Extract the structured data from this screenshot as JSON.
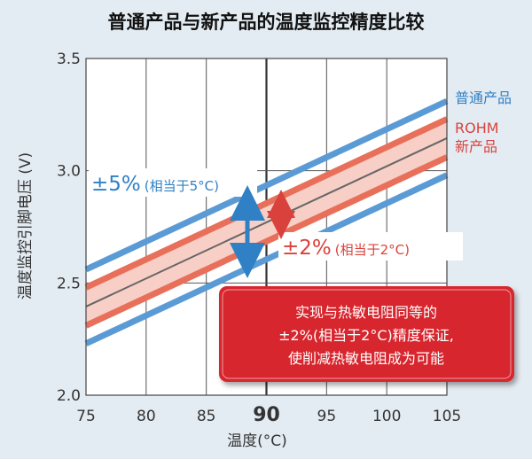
{
  "chart_data": {
    "type": "line",
    "title": "普通产品与新产品的温度监控精度比较",
    "xlabel": "温度(°C)",
    "ylabel": "温度监控引脚电压 (V)",
    "xlim": [
      75,
      105
    ],
    "ylim": [
      2.0,
      3.5
    ],
    "x_ticks": [
      "75",
      "80",
      "85",
      "90",
      "95",
      "100",
      "105"
    ],
    "y_ticks": [
      "2.0",
      "2.5",
      "3.0",
      "3.5"
    ],
    "grid": true,
    "legend_position": "right",
    "series": [
      {
        "name": "普通产品",
        "color": "#5b9bd5",
        "band": "outer",
        "x": [
          75,
          105
        ],
        "upper": [
          2.56,
          3.31
        ],
        "lower": [
          2.23,
          2.98
        ]
      },
      {
        "name": "ROHM 新产品",
        "color": "#e8705a",
        "band": "inner",
        "x": [
          75,
          105
        ],
        "upper": [
          2.48,
          3.23
        ],
        "lower": [
          2.31,
          3.06
        ]
      },
      {
        "name": "",
        "color": "#666666",
        "band": "center",
        "x": [
          75,
          105
        ],
        "y": [
          2.395,
          3.145
        ]
      }
    ],
    "legend": {
      "normal": "普通产品",
      "rohm_line1": "ROHM",
      "rohm_line2": "新产品"
    },
    "annotations": {
      "pm5": "±5%",
      "pm5_note": "(相当于5°C)",
      "pm2": "±2%",
      "pm2_note": "(相当于2°C)",
      "callout_lines": [
        "实现与热敏电阻同等的",
        "±2%(相当于2°C)精度保证,",
        "使削减热敏电阻成为可能"
      ]
    },
    "colors": {
      "blue": "#5b9bd5",
      "blue_text": "#2f80c4",
      "red": "#e8705a",
      "red_text": "#d9423c",
      "band": "#f7cfc6",
      "callout_bg": "#d7282f"
    }
  }
}
